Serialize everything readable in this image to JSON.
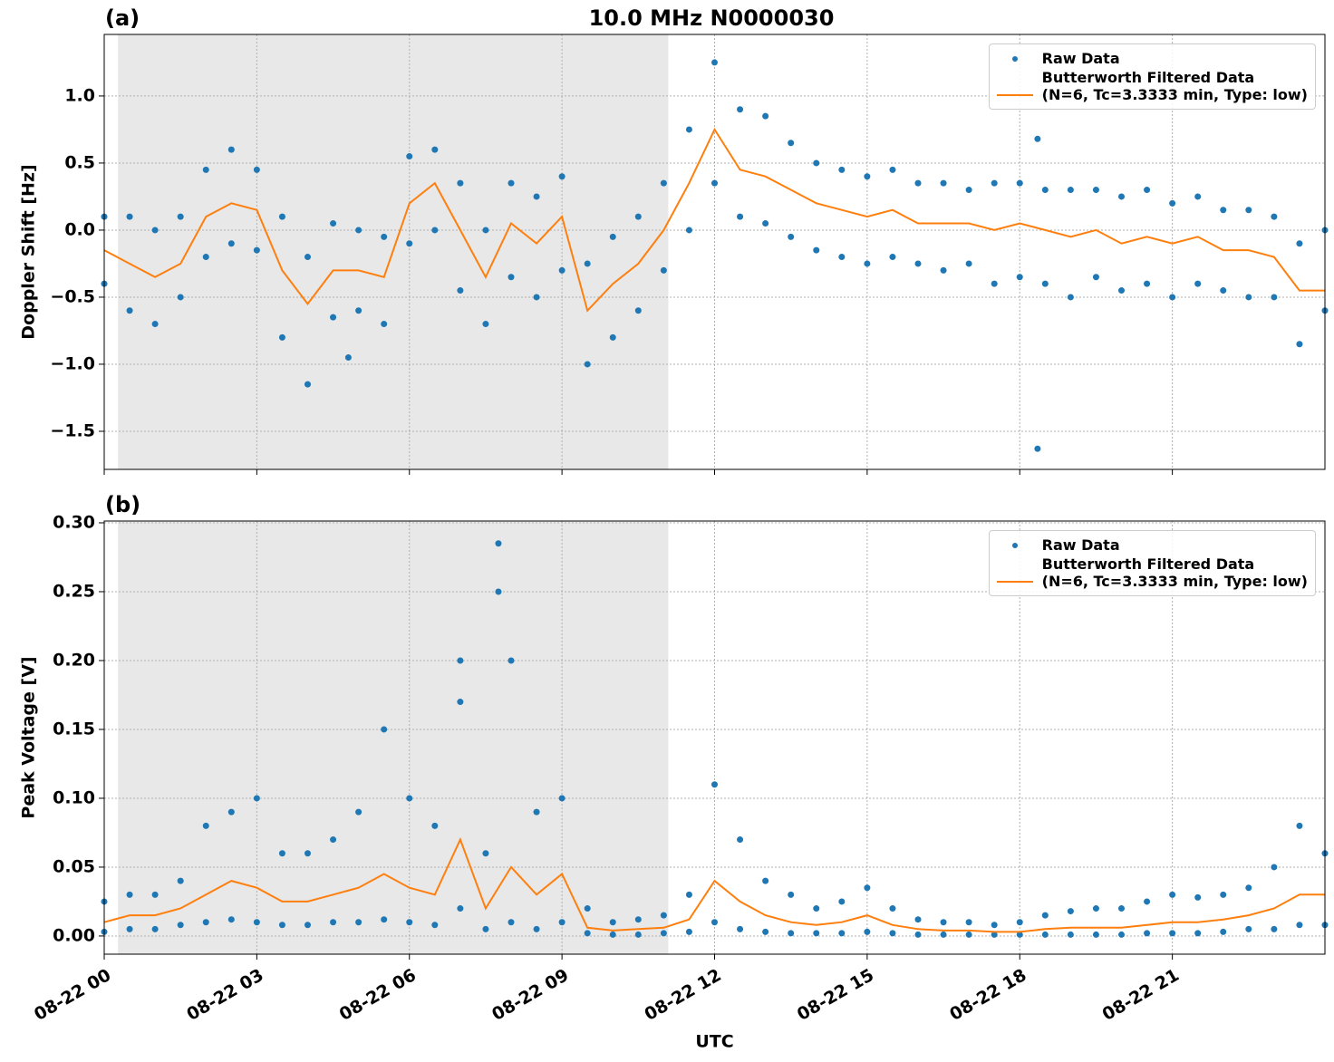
{
  "chart_data": [
    {
      "type": "line",
      "title": "10.0 MHz N0000030",
      "panel_label": "(a)",
      "ylabel": "Doppler Shift [Hz]",
      "xlim": [
        0,
        24
      ],
      "xticks": [
        0,
        3,
        6,
        9,
        12,
        15,
        18,
        21
      ],
      "ylim": [
        -1.784,
        1.459
      ],
      "yticks": [
        {
          "value": -1.5,
          "label": "−1.5"
        },
        {
          "value": -1.0,
          "label": "−1.0"
        },
        {
          "value": -0.5,
          "label": "−0.5"
        },
        {
          "value": 0,
          "label": "0.0"
        },
        0.5,
        {
          "value": 1.0,
          "label": "1.0"
        }
      ],
      "grid": true,
      "shaded_span": [
        0.27,
        11.09
      ],
      "legend": "upper right",
      "series": [
        {
          "name": "Raw Data",
          "color": "#1f77b4",
          "mode": "markers",
          "x": [
            0,
            0,
            0.5,
            0.5,
            1,
            1,
            1.5,
            1.5,
            2,
            2,
            2.5,
            2.5,
            3,
            3,
            3.5,
            3.5,
            4,
            4,
            4.5,
            4.5,
            5,
            5,
            5.5,
            5.5,
            6,
            6,
            6.5,
            6.5,
            7,
            7,
            7.5,
            7.5,
            8,
            8,
            8.5,
            8.5,
            9,
            9,
            9.5,
            9.5,
            10,
            10,
            10.5,
            10.5,
            11,
            11,
            11.5,
            11.5,
            12,
            12,
            12.5,
            12.5,
            13,
            13,
            13.5,
            13.5,
            14,
            14,
            14.5,
            14.5,
            15,
            15,
            15.5,
            15.5,
            16,
            16,
            16.5,
            16.5,
            17,
            17,
            17.5,
            17.5,
            18,
            18,
            18.5,
            18.5,
            19,
            19,
            19.5,
            19.5,
            20,
            20,
            20.5,
            20.5,
            21,
            21,
            21.5,
            21.5,
            22,
            22,
            22.5,
            22.5,
            23,
            23,
            23.5,
            23.5,
            24,
            24,
            18.35,
            18.35,
            4.8
          ],
          "values": [
            0.1,
            -0.4,
            0.1,
            -0.6,
            0.0,
            -0.7,
            0.1,
            -0.5,
            0.45,
            -0.2,
            0.6,
            -0.1,
            0.45,
            -0.15,
            0.1,
            -0.8,
            -0.2,
            -1.15,
            0.05,
            -0.65,
            0.0,
            -0.6,
            -0.05,
            -0.7,
            0.55,
            -0.1,
            0.6,
            0.0,
            0.35,
            -0.45,
            0.0,
            -0.7,
            0.35,
            -0.35,
            0.25,
            -0.5,
            0.4,
            -0.3,
            -0.25,
            -1.0,
            -0.05,
            -0.8,
            0.1,
            -0.6,
            0.35,
            -0.3,
            0.75,
            0.0,
            1.25,
            0.35,
            0.9,
            0.1,
            0.85,
            0.05,
            0.65,
            -0.05,
            0.5,
            -0.15,
            0.45,
            -0.2,
            0.4,
            -0.25,
            0.45,
            -0.2,
            0.35,
            -0.25,
            0.35,
            -0.3,
            0.3,
            -0.25,
            0.35,
            -0.4,
            0.35,
            -0.35,
            0.3,
            -0.4,
            0.3,
            -0.5,
            0.3,
            -0.35,
            0.25,
            -0.45,
            0.3,
            -0.4,
            0.2,
            -0.5,
            0.25,
            -0.4,
            0.15,
            -0.45,
            0.15,
            -0.5,
            0.1,
            -0.5,
            -0.1,
            -0.85,
            0.0,
            -0.6,
            -1.63,
            0.68,
            -0.95
          ]
        },
        {
          "name": "Butterworth Filtered Data\n(N=6, Tc=3.3333 min, Type: low)",
          "color": "#ff7f0e",
          "mode": "lines",
          "x": [
            0,
            0.5,
            1,
            1.5,
            2,
            2.5,
            3,
            3.5,
            4,
            4.5,
            5,
            5.5,
            6,
            6.5,
            7,
            7.5,
            8,
            8.5,
            9,
            9.5,
            10,
            10.5,
            11,
            11.5,
            12,
            12.5,
            13,
            13.5,
            14,
            14.5,
            15,
            15.5,
            16,
            16.5,
            17,
            17.5,
            18,
            18.5,
            19,
            19.5,
            20,
            20.5,
            21,
            21.5,
            22,
            22.5,
            23,
            23.5,
            24
          ],
          "values": [
            -0.15,
            -0.25,
            -0.35,
            -0.25,
            0.1,
            0.2,
            0.15,
            -0.3,
            -0.55,
            -0.3,
            -0.3,
            -0.35,
            0.2,
            0.35,
            0.0,
            -0.35,
            0.05,
            -0.1,
            0.1,
            -0.6,
            -0.4,
            -0.25,
            0.0,
            0.35,
            0.75,
            0.45,
            0.4,
            0.3,
            0.2,
            0.15,
            0.1,
            0.15,
            0.05,
            0.05,
            0.05,
            0.0,
            0.05,
            0.0,
            -0.05,
            0.0,
            -0.1,
            -0.05,
            -0.1,
            -0.05,
            -0.15,
            -0.15,
            -0.2,
            -0.45,
            -0.45
          ]
        }
      ]
    },
    {
      "type": "line",
      "panel_label": "(b)",
      "ylabel": "Peak Voltage [V]",
      "xlabel": "UTC",
      "xlim": [
        0,
        24
      ],
      "xticks": [
        {
          "value": 0,
          "label": "08-22 00"
        },
        {
          "value": 3,
          "label": "08-22 03"
        },
        {
          "value": 6,
          "label": "08-22 06"
        },
        {
          "value": 9,
          "label": "08-22 09"
        },
        {
          "value": 12,
          "label": "08-22 12"
        },
        {
          "value": 15,
          "label": "08-22 15"
        },
        {
          "value": 18,
          "label": "08-22 18"
        },
        {
          "value": 21,
          "label": "08-22 21"
        }
      ],
      "ylim": [
        -0.0132,
        0.3013
      ],
      "yticks": [
        {
          "value": 0,
          "label": "0.00"
        },
        0.05,
        {
          "value": 0.1,
          "label": "0.10"
        },
        0.15,
        {
          "value": 0.2,
          "label": "0.20"
        },
        0.25,
        {
          "value": 0.3,
          "label": "0.30"
        }
      ],
      "grid": true,
      "shaded_span": [
        0.27,
        11.09
      ],
      "legend": "upper right",
      "series": [
        {
          "name": "Raw Data",
          "color": "#1f77b4",
          "mode": "markers",
          "x": [
            0,
            0,
            0.5,
            0.5,
            1,
            1,
            1.5,
            1.5,
            2,
            2,
            2.5,
            2.5,
            3,
            3,
            3.5,
            3.5,
            4,
            4,
            4.5,
            4.5,
            5,
            5,
            5.5,
            5.5,
            6,
            6,
            6.5,
            6.5,
            7,
            7,
            7.5,
            7.5,
            8,
            8,
            8.5,
            8.5,
            9,
            9,
            9.5,
            9.5,
            10,
            10,
            10.5,
            10.5,
            11,
            11,
            11.5,
            11.5,
            12,
            12,
            12.5,
            12.5,
            13,
            13,
            13.5,
            13.5,
            14,
            14,
            14.5,
            14.5,
            15,
            15,
            15.5,
            15.5,
            16,
            16,
            16.5,
            16.5,
            17,
            17,
            17.5,
            17.5,
            18,
            18,
            18.5,
            18.5,
            19,
            19,
            19.5,
            19.5,
            20,
            20,
            20.5,
            20.5,
            21,
            21,
            21.5,
            21.5,
            22,
            22,
            22.5,
            22.5,
            23,
            23,
            23.5,
            23.5,
            24,
            24,
            7.75,
            7.75,
            7.0
          ],
          "values": [
            0.025,
            0.003,
            0.03,
            0.005,
            0.03,
            0.005,
            0.04,
            0.008,
            0.08,
            0.01,
            0.09,
            0.012,
            0.1,
            0.01,
            0.06,
            0.008,
            0.06,
            0.008,
            0.07,
            0.01,
            0.09,
            0.01,
            0.15,
            0.012,
            0.1,
            0.01,
            0.08,
            0.008,
            0.17,
            0.02,
            0.06,
            0.005,
            0.2,
            0.01,
            0.09,
            0.005,
            0.1,
            0.01,
            0.02,
            0.002,
            0.01,
            0.001,
            0.012,
            0.001,
            0.015,
            0.002,
            0.03,
            0.003,
            0.11,
            0.01,
            0.07,
            0.005,
            0.04,
            0.003,
            0.03,
            0.002,
            0.02,
            0.002,
            0.025,
            0.002,
            0.035,
            0.003,
            0.02,
            0.002,
            0.012,
            0.001,
            0.01,
            0.001,
            0.01,
            0.001,
            0.008,
            0.001,
            0.01,
            0.001,
            0.015,
            0.001,
            0.018,
            0.001,
            0.02,
            0.001,
            0.02,
            0.001,
            0.025,
            0.002,
            0.03,
            0.002,
            0.028,
            0.002,
            0.03,
            0.003,
            0.035,
            0.005,
            0.05,
            0.005,
            0.08,
            0.008,
            0.06,
            0.008,
            0.285,
            0.25,
            0.2
          ]
        },
        {
          "name": "Butterworth Filtered Data\n(N=6, Tc=3.3333 min, Type: low)",
          "color": "#ff7f0e",
          "mode": "lines",
          "x": [
            0,
            0.5,
            1,
            1.5,
            2,
            2.5,
            3,
            3.5,
            4,
            4.5,
            5,
            5.5,
            6,
            6.5,
            7,
            7.5,
            8,
            8.5,
            9,
            9.5,
            10,
            10.5,
            11,
            11.5,
            12,
            12.5,
            13,
            13.5,
            14,
            14.5,
            15,
            15.5,
            16,
            16.5,
            17,
            17.5,
            18,
            18.5,
            19,
            19.5,
            20,
            20.5,
            21,
            21.5,
            22,
            22.5,
            23,
            23.5,
            24
          ],
          "values": [
            0.01,
            0.015,
            0.015,
            0.02,
            0.03,
            0.04,
            0.035,
            0.025,
            0.025,
            0.03,
            0.035,
            0.045,
            0.035,
            0.03,
            0.07,
            0.02,
            0.05,
            0.03,
            0.045,
            0.006,
            0.004,
            0.005,
            0.006,
            0.012,
            0.04,
            0.025,
            0.015,
            0.01,
            0.008,
            0.01,
            0.015,
            0.008,
            0.005,
            0.004,
            0.004,
            0.003,
            0.003,
            0.005,
            0.006,
            0.006,
            0.006,
            0.008,
            0.01,
            0.01,
            0.012,
            0.015,
            0.02,
            0.03,
            0.03
          ]
        }
      ]
    }
  ]
}
